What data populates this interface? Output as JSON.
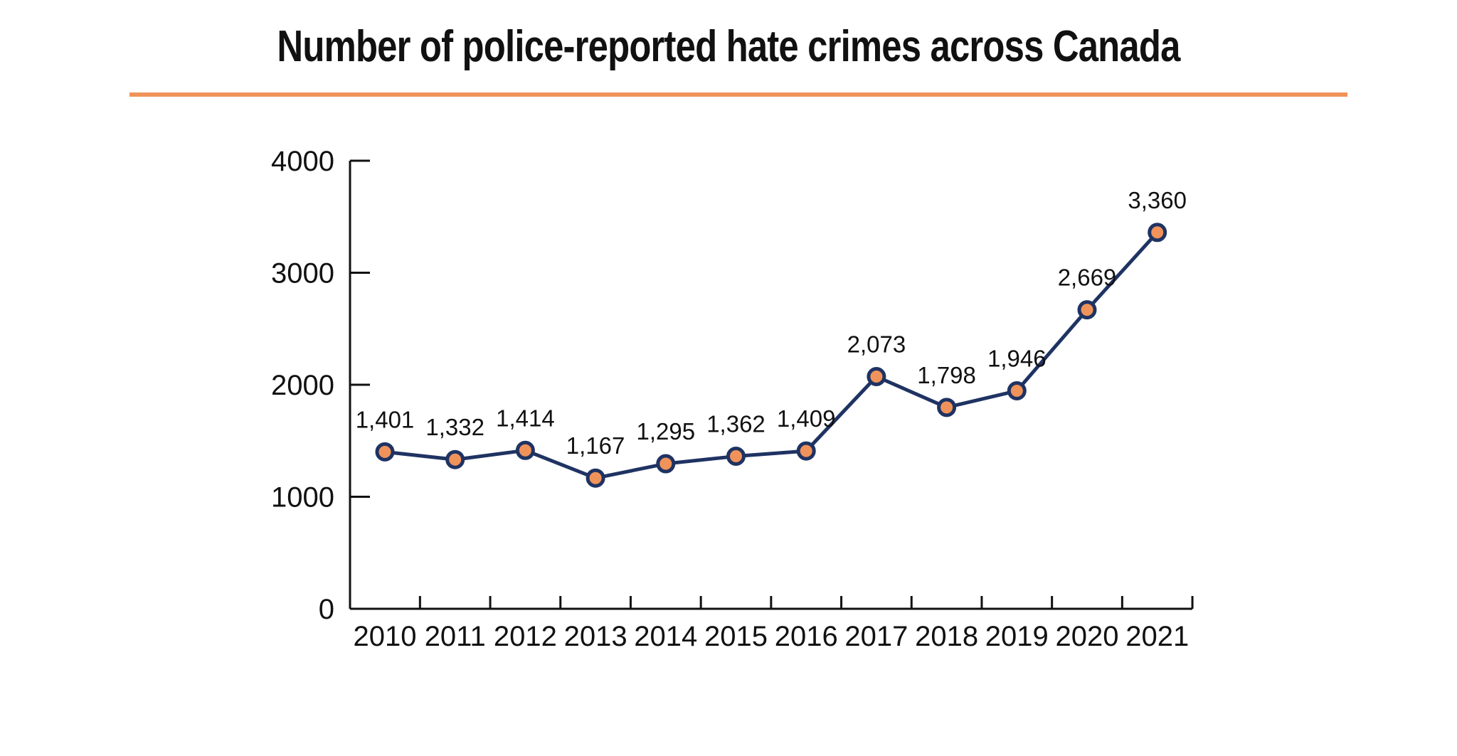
{
  "colors": {
    "accent": "#f0935a",
    "line": "#1f3363",
    "marker_fill": "#f0935a",
    "axis": "#111111"
  },
  "chart_data": {
    "type": "line",
    "title": "Number of police-reported hate crimes across Canada",
    "xlabel": "",
    "ylabel": "",
    "categories": [
      "2010",
      "2011",
      "2012",
      "2013",
      "2014",
      "2015",
      "2016",
      "2017",
      "2018",
      "2019",
      "2020",
      "2021"
    ],
    "values": [
      1401,
      1332,
      1414,
      1167,
      1295,
      1362,
      1409,
      2073,
      1798,
      1946,
      2669,
      3360
    ],
    "data_labels": [
      "1,401",
      "1,332",
      "1,414",
      "1,167",
      "1,295",
      "1,362",
      "1,409",
      "2,073",
      "1,798",
      "1,946",
      "2,669",
      "3,360"
    ],
    "ylim": [
      0,
      4000
    ],
    "yticks": [
      0,
      1000,
      2000,
      3000,
      4000
    ],
    "grid": false,
    "legend": "none"
  }
}
